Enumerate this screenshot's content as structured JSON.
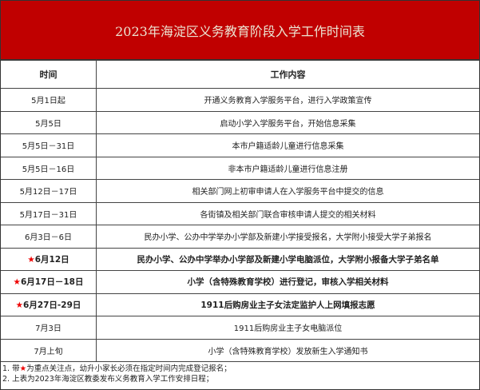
{
  "title": "2023年海淀区义务教育阶段入学工作时间表",
  "headers": {
    "time": "时间",
    "content": "工作内容"
  },
  "star": "★",
  "rows": [
    {
      "time": "5月1日起",
      "content": "开通义务教育入学服务平台，进行入学政策宣传",
      "important": false
    },
    {
      "time": "5月5日",
      "content": "启动小学入学服务平台，开始信息采集",
      "important": false
    },
    {
      "time": "5月5日－31日",
      "content": "本市户籍适龄儿童进行信息采集",
      "important": false
    },
    {
      "time": "5月5日－16日",
      "content": "非本市户籍适龄儿童进行信息注册",
      "important": false
    },
    {
      "time": "5月12日－17日",
      "content": "相关部门网上初审申请人在入学服务平台中提交的信息",
      "important": false
    },
    {
      "time": "5月17日－31日",
      "content": "各街镇及相关部门联合审核申请人提交的相关材料",
      "important": false
    },
    {
      "time": "6月3日－6日",
      "content": "民办小学、公办中学举办小学部及新建小学接受报名，大学附小接受大学子弟报名",
      "important": false
    },
    {
      "time": "6月12日",
      "content": "民办小学、公办中学举办小学部及新建小学电脑派位，大学附小报备大学子弟名单",
      "important": true
    },
    {
      "time": "6月17日－18日",
      "content": "小学（含特殊教育学校）进行登记，审核入学相关材料",
      "important": true
    },
    {
      "time": "6月27日-29日",
      "content": "1911后购房业主子女法定监护人上网填报志愿",
      "important": true
    },
    {
      "time": "7月3日",
      "content": "1911后购房业主子女电脑派位",
      "important": false
    },
    {
      "time": "7月上旬",
      "content": "小学（含特殊教育学校）发放新生入学通知书",
      "important": false
    }
  ],
  "notes": {
    "n1_pre": "1. 带",
    "n1_post": "为重点关注点，幼升小家长必须在指定时间内完成登记报名；",
    "n2": "2. 上表为2023年海淀区教委发布义务教育入学工作安排日程；"
  },
  "colors": {
    "header_bg": "#c00000",
    "star": "#ee0000"
  }
}
